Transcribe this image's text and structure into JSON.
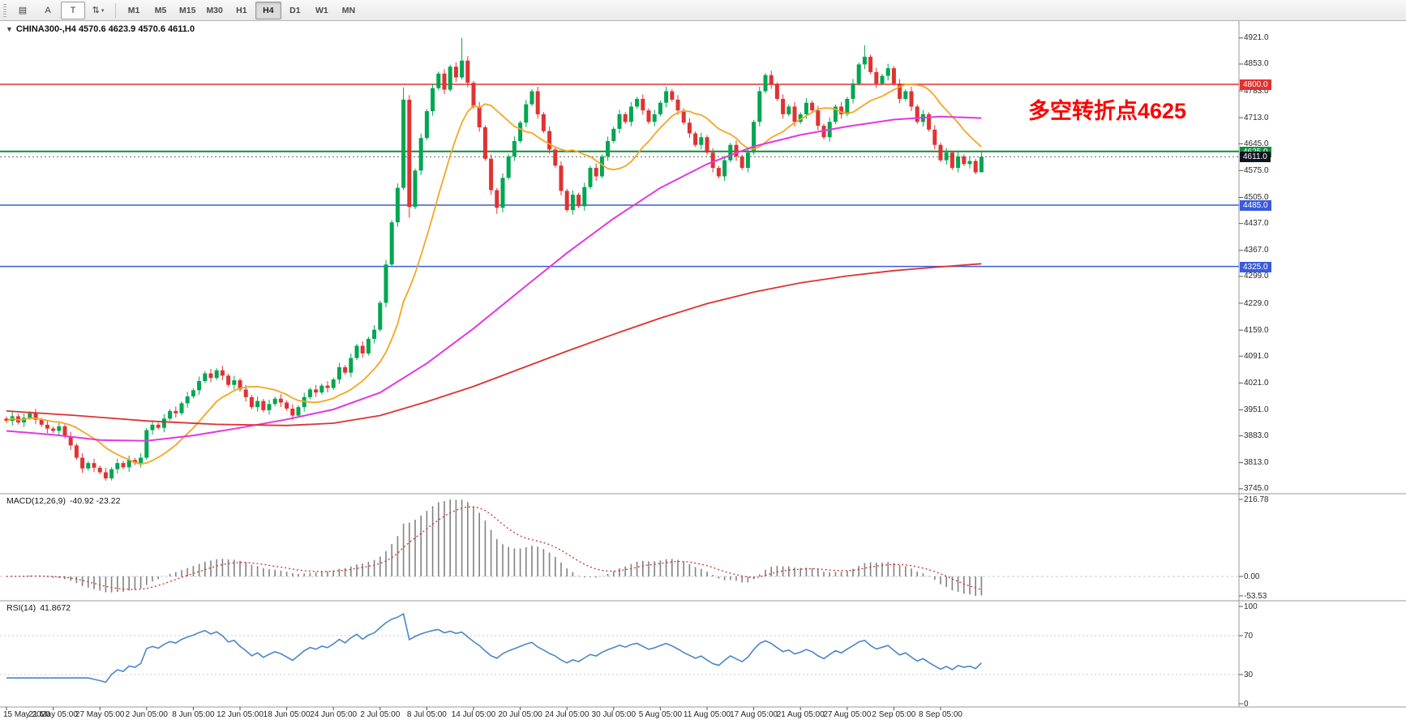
{
  "window_title": "CHINA300- H4 chart",
  "toolbar": {
    "left_buttons": [
      {
        "name": "grid-icon-button",
        "glyph": "▤",
        "boxed": false,
        "caret": false
      },
      {
        "name": "letter-a-button",
        "glyph": "A",
        "boxed": false,
        "caret": false
      },
      {
        "name": "text-tool-button",
        "glyph": "T",
        "boxed": true,
        "caret": false
      },
      {
        "name": "sort-arrows-button",
        "glyph": "⇅",
        "boxed": false,
        "caret": true
      }
    ],
    "timeframes": [
      "M1",
      "M5",
      "M15",
      "M30",
      "H1",
      "H4",
      "D1",
      "W1",
      "MN"
    ],
    "active_timeframe": "H4"
  },
  "header": {
    "collapse_glyph": "▼",
    "symbol_text": "CHINA300-,H4 4570.6 4623.9 4570.6 4611.0"
  },
  "annotation": {
    "text": "多空转折点4625",
    "color": "#FF0000"
  },
  "macd_panel": {
    "label": "MACD(12,26,9)",
    "values": "-40.92 -23.22",
    "scale_labels": [
      "216.78",
      "0.00",
      "-53.53"
    ]
  },
  "rsi_panel": {
    "label": "RSI(14)",
    "value": "41.8672",
    "scale_labels": [
      "100",
      "70",
      "30",
      "0"
    ]
  },
  "colors": {
    "up": "#00A651",
    "down": "#E03232",
    "ma_fast": "#F5A623",
    "ma_medium": "#E238E2",
    "ma_slow": "#E03131",
    "macd_bar": "#828282",
    "macd_signal": "#D03030",
    "rsi_line": "#4A86C8",
    "grid_dash": "#c8c8d4",
    "separator": "#9a9a9a"
  },
  "chart_data": {
    "type": "candlestick",
    "title": "CHINA300- H4",
    "symbol": "CHINA300-",
    "timeframe": "H4",
    "ohlc_current": {
      "open": 4570.6,
      "high": 4623.9,
      "low": 4570.6,
      "close": 4611.0
    },
    "y_range": [
      3732,
      4965
    ],
    "y_axis_ticks": [
      4921.0,
      4853.0,
      4783.0,
      4713.0,
      4645.0,
      4575.0,
      4505.0,
      4437.0,
      4367.0,
      4299.0,
      4229.0,
      4159.0,
      4091.0,
      4021.0,
      3951.0,
      3883.0,
      3813.0,
      3745.0
    ],
    "x_axis_labels": [
      "15 May 2020",
      "21 May 05:00",
      "27 May 05:00",
      "2 Jun 05:00",
      "8 Jun 05:00",
      "12 Jun 05:00",
      "18 Jun 05:00",
      "24 Jun 05:00",
      "2 Jul 05:00",
      "8 Jul 05:00",
      "14 Jul 05:00",
      "20 Jul 05:00",
      "24 Jul 05:00",
      "30 Jul 05:00",
      "5 Aug 05:00",
      "11 Aug 05:00",
      "17 Aug 05:00",
      "21 Aug 05:00",
      "27 Aug 05:00",
      "2 Sep 05:00",
      "8 Sep 05:00"
    ],
    "bars_per_x_tick": 8,
    "closes": [
      3922,
      3934,
      3918,
      3930,
      3942,
      3925,
      3912,
      3902,
      3896,
      3908,
      3882,
      3858,
      3826,
      3798,
      3812,
      3800,
      3788,
      3772,
      3796,
      3812,
      3801,
      3820,
      3812,
      3826,
      3898,
      3912,
      3904,
      3928,
      3948,
      3942,
      3968,
      3986,
      4002,
      4026,
      4046,
      4034,
      4054,
      4040,
      4016,
      4028,
      4004,
      3984,
      3958,
      3974,
      3950,
      3966,
      3980,
      3970,
      3954,
      3936,
      3958,
      3984,
      4004,
      3996,
      4014,
      4008,
      4030,
      4062,
      4048,
      4086,
      4118,
      4098,
      4136,
      4160,
      4230,
      4330,
      4440,
      4530,
      4760,
      4480,
      4575,
      4660,
      4730,
      4790,
      4828,
      4786,
      4846,
      4818,
      4862,
      4804,
      4742,
      4688,
      4606,
      4524,
      4478,
      4556,
      4612,
      4652,
      4700,
      4748,
      4782,
      4722,
      4678,
      4630,
      4588,
      4522,
      4472,
      4512,
      4482,
      4532,
      4582,
      4560,
      4612,
      4652,
      4684,
      4722,
      4702,
      4742,
      4762,
      4732,
      4702,
      4722,
      4752,
      4782,
      4760,
      4732,
      4700,
      4672,
      4642,
      4662,
      4622,
      4582,
      4560,
      4602,
      4642,
      4612,
      4582,
      4622,
      4702,
      4782,
      4824,
      4800,
      4762,
      4722,
      4742,
      4702,
      4722,
      4752,
      4732,
      4692,
      4662,
      4702,
      4742,
      4722,
      4762,
      4802,
      4852,
      4872,
      4832,
      4802,
      4822,
      4842,
      4802,
      4762,
      4782,
      4742,
      4702,
      4722,
      4682,
      4642,
      4602,
      4622,
      4582,
      4612,
      4592,
      4600,
      4570.6,
      4611
    ],
    "wick_spikes": {
      "17": {
        "low": 3766
      },
      "68": {
        "high": 4792
      },
      "69": {
        "low": 4452
      },
      "78": {
        "high": 4921
      },
      "84": {
        "low": 4462
      },
      "147": {
        "high": 4902
      },
      "167": {
        "high": 4623.9,
        "low": 4570.6
      }
    },
    "ma_fast": {
      "name": "fast MA",
      "period": 13,
      "color": "#F5A623"
    },
    "ma_medium": {
      "name": "medium MA",
      "color": "#E238E2",
      "points": [
        [
          0,
          3896
        ],
        [
          8,
          3886
        ],
        [
          16,
          3872
        ],
        [
          24,
          3870
        ],
        [
          32,
          3884
        ],
        [
          40,
          3904
        ],
        [
          48,
          3926
        ],
        [
          56,
          3952
        ],
        [
          64,
          3996
        ],
        [
          72,
          4072
        ],
        [
          80,
          4163
        ],
        [
          88,
          4262
        ],
        [
          96,
          4360
        ],
        [
          104,
          4450
        ],
        [
          112,
          4530
        ],
        [
          120,
          4592
        ],
        [
          128,
          4638
        ],
        [
          136,
          4668
        ],
        [
          144,
          4690
        ],
        [
          152,
          4708
        ],
        [
          160,
          4716
        ],
        [
          167,
          4712
        ]
      ]
    },
    "ma_slow": {
      "name": "slow MA",
      "color": "#E03131",
      "points": [
        [
          0,
          3948
        ],
        [
          12,
          3936
        ],
        [
          24,
          3922
        ],
        [
          36,
          3913
        ],
        [
          48,
          3910
        ],
        [
          56,
          3916
        ],
        [
          64,
          3936
        ],
        [
          72,
          3972
        ],
        [
          80,
          4012
        ],
        [
          88,
          4058
        ],
        [
          96,
          4104
        ],
        [
          104,
          4148
        ],
        [
          112,
          4190
        ],
        [
          120,
          4228
        ],
        [
          128,
          4258
        ],
        [
          136,
          4282
        ],
        [
          144,
          4300
        ],
        [
          152,
          4314
        ],
        [
          160,
          4324
        ],
        [
          167,
          4332
        ]
      ]
    },
    "levels": [
      {
        "price": 4800.0,
        "label": "4800.0",
        "color": "#E03131",
        "width": 1.5
      },
      {
        "price": 4625.0,
        "label": "4625.0",
        "color": "#0B8F3A",
        "width": 2
      },
      {
        "price": 4485.0,
        "label": "4485.0",
        "color": "#3B5BDB",
        "width": 1.5
      },
      {
        "price": 4325.0,
        "label": "4325.0",
        "color": "#3B5BDB",
        "width": 1.5
      }
    ],
    "current_price": {
      "value": 4611.0,
      "label": "4611.0",
      "badge_color": "#0D1520"
    },
    "macd": {
      "params": [
        12,
        26,
        9
      ],
      "current_values": [
        -40.92,
        -23.22
      ],
      "axis": [
        216.78,
        0.0,
        -53.53
      ]
    },
    "rsi": {
      "period": 14,
      "current_value": 41.8672,
      "axis": [
        100,
        70,
        30,
        0
      ],
      "levels": [
        70,
        30
      ]
    }
  }
}
